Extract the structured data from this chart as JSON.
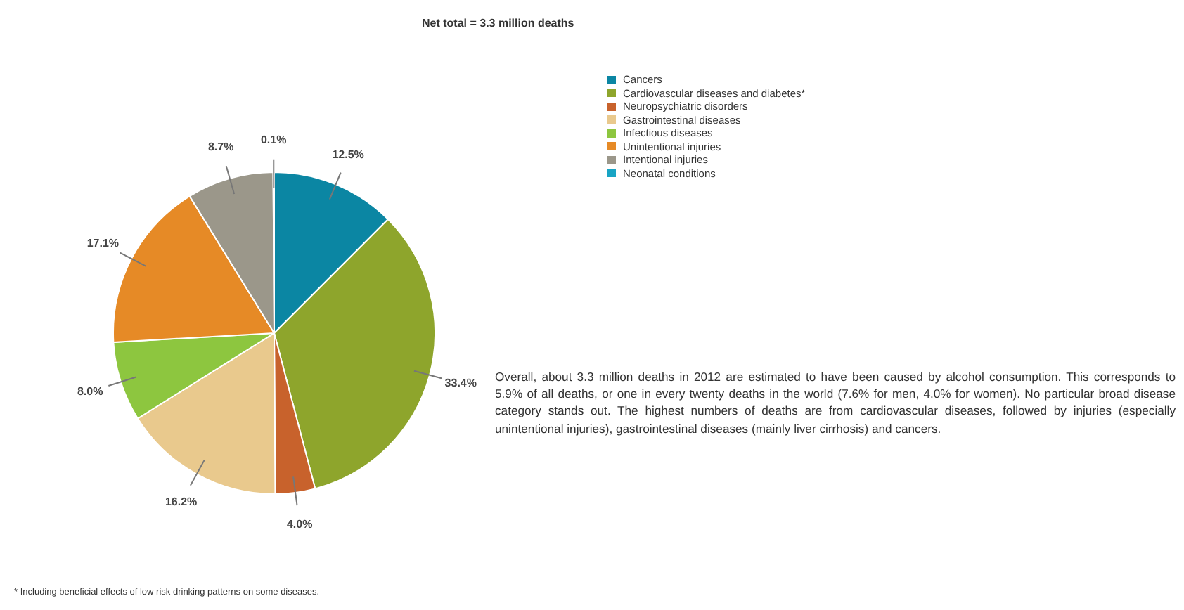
{
  "chart_data": {
    "type": "pie",
    "title": "Net total = 3.3 million deaths",
    "categories": [
      "Cancers",
      "Cardiovascular diseases and diabetes*",
      "Neuropsychiatric disorders",
      "Gastrointestinal diseases",
      "Infectious diseases",
      "Unintentional injuries",
      "Intentional injuries",
      "Neonatal conditions"
    ],
    "values": [
      12.5,
      33.4,
      4.0,
      16.2,
      8.0,
      17.1,
      8.7,
      0.1
    ],
    "value_labels": [
      "12.5%",
      "33.4%",
      "4.0%",
      "16.2%",
      "8.0%",
      "17.1%",
      "8.7%",
      "0.1%"
    ],
    "colors": [
      "#0b86a3",
      "#8ea52c",
      "#c8622c",
      "#e9c98d",
      "#8dc63f",
      "#e68a26",
      "#9b978a",
      "#18a4c4"
    ],
    "legend": "right",
    "annotations": [
      "Overall, about 3.3 million deaths in 2012 are estimated to have been caused by alcohol consumption. This corresponds to 5.9% of all deaths, or one in every twenty deaths in the world (7.6% for men, 4.0% for women). No particular broad disease category stands out. The highest numbers of deaths are from cardiovascular diseases, followed by injuries (especially unintentional injuries), gastrointestinal diseases (mainly liver cirrhosis) and cancers.",
      "* Including beneficial effects of low risk drinking patterns on some diseases."
    ]
  }
}
